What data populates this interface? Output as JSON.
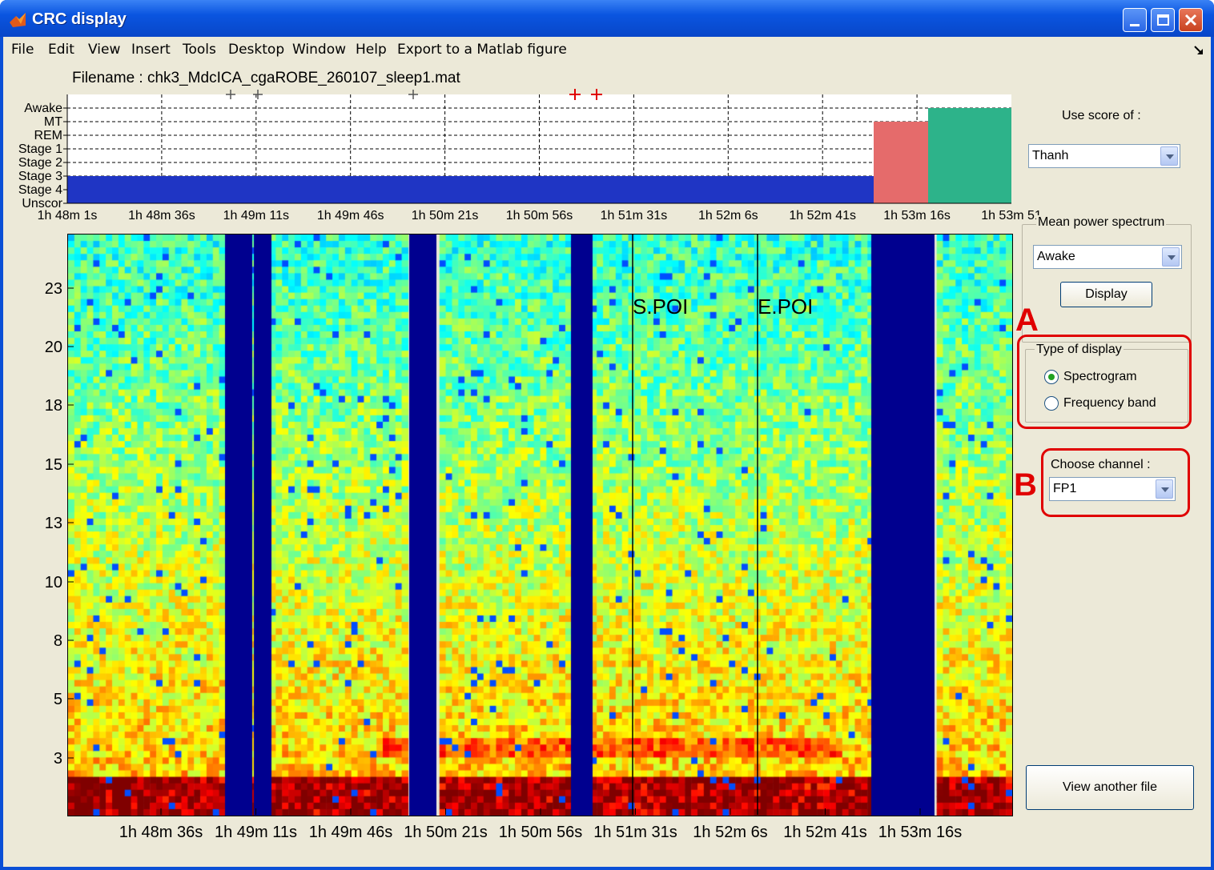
{
  "window": {
    "title": "CRC display",
    "colors": {
      "titlebar": "#0a55e0",
      "client": "#ece9d8"
    }
  },
  "menubar": {
    "items": [
      "File",
      "Edit",
      "View",
      "Insert",
      "Tools",
      "Desktop",
      "Window",
      "Help",
      "Export to a Matlab figure"
    ]
  },
  "header": {
    "filename": "Filename :  chk3_MdcICA_cgaROBE_260107_sleep1.mat"
  },
  "hypnogram": {
    "stages": [
      "Awake",
      "MT",
      "REM",
      "Stage 1",
      "Stage 2",
      "Stage 3",
      "Stage 4",
      "Unscor"
    ],
    "time_ticks": [
      "1h 48m  1s",
      "1h 48m 36s",
      "1h 49m 11s",
      "1h 49m 46s",
      "1h 50m 21s",
      "1h 50m 56s",
      "1h 51m 31s",
      "1h 52m  6s",
      "1h 52m 41s",
      "1h 53m 16s",
      "1h 53m 51"
    ],
    "colors": {
      "stage4_bar": "#1f35c4",
      "rem_block": "#e56b6b",
      "awake_block": "#2db38a",
      "gray_marker": "#555555",
      "red_marker": "#e00000"
    }
  },
  "spectrogram": {
    "y_ticks": [
      "23",
      "20",
      "18",
      "15",
      "13",
      "10",
      "8",
      "5",
      "3"
    ],
    "x_ticks": [
      "1h 48m 36s",
      "1h 49m 11s",
      "1h 49m 46s",
      "1h 50m 21s",
      "1h 50m 56s",
      "1h 51m 31s",
      "1h 52m  6s",
      "1h 52m 41s",
      "1h 53m 16s"
    ],
    "annotations": [
      "S.POI",
      "E.POI"
    ],
    "colors": {
      "gap": "#00008f",
      "low": "#1e78d6",
      "mid": "#9ee24a",
      "high": "#f0c030",
      "hot": "#d42010"
    }
  },
  "right_panel": {
    "use_score_label": "Use score of :",
    "use_score_value": "Thanh",
    "mean_power_label": "Mean power spectrum",
    "mean_power_value": "Awake",
    "display_button": "Display",
    "type_of_display_label": "Type of display",
    "radio_spectrogram": "Spectrogram",
    "radio_frequency_band": "Frequency band",
    "choose_channel_label": "Choose channel :",
    "channel_value": "FP1",
    "view_another_button": "View another file",
    "annotation_a": "A",
    "annotation_b": "B"
  }
}
